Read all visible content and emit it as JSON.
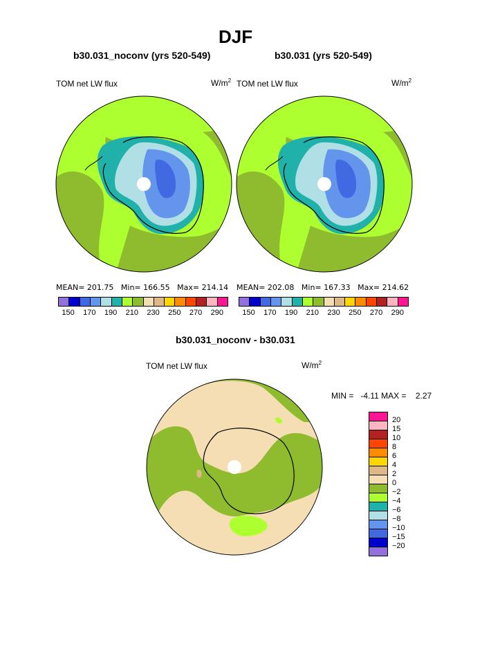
{
  "page": {
    "title": "DJF"
  },
  "panels": [
    {
      "case": "b30.031_noconv (yrs 520-549)",
      "variable": "TOM net LW flux",
      "units": "W/m",
      "units_sup": "2",
      "stats": {
        "mean": "MEAN= 201.75",
        "min": "Min= 166.55",
        "max": "Max= 214.14"
      }
    },
    {
      "case": "b30.031 (yrs 520-549)",
      "variable": "TOM net LW flux",
      "units": "W/m",
      "units_sup": "2",
      "stats": {
        "mean": "MEAN= 202.08",
        "min": "Min= 167.33",
        "max": "Max= 214.62"
      }
    }
  ],
  "diff": {
    "title": "b30.031_noconv - b30.031",
    "variable": "TOM net LW flux",
    "units": "W/m",
    "units_sup": "2",
    "minmax": "MIN =   -4.11 MAX =    2.27"
  },
  "colorbar_top": {
    "colors": [
      "#9370db",
      "#0000cd",
      "#4169e1",
      "#6495ed",
      "#b0e0e6",
      "#20b2aa",
      "#adff2f",
      "#8fbc2f",
      "#f5deb3",
      "#deb887",
      "#ffd700",
      "#ff8c00",
      "#ff4500",
      "#b22222",
      "#ffb6c1",
      "#ff1493"
    ],
    "tick_labels": [
      "150",
      "170",
      "190",
      "210",
      "230",
      "250",
      "270",
      "290"
    ]
  },
  "colorbar_diff": {
    "colors": [
      "#ff1493",
      "#ffb6c1",
      "#b22222",
      "#ff4500",
      "#ff8c00",
      "#ffd700",
      "#deb887",
      "#f5deb3",
      "#8fbc2f",
      "#adff2f",
      "#20b2aa",
      "#b0e0e6",
      "#6495ed",
      "#4169e1",
      "#0000cd",
      "#9370db"
    ],
    "labels": [
      "20",
      "15",
      "10",
      "8",
      "6",
      "4",
      "2",
      "0",
      "−2",
      "−4",
      "−6",
      "−8",
      "−10",
      "−15",
      "−20"
    ]
  },
  "chart_data": [
    {
      "type": "heatmap",
      "title": "b30.031_noconv (yrs 520-549)",
      "projection": "south polar stereographic",
      "variable": "TOM net LW flux",
      "units": "W/m2",
      "mean": 201.75,
      "min": 166.55,
      "max": 214.14,
      "levels": [
        150,
        160,
        170,
        180,
        190,
        200,
        210,
        220,
        230,
        240,
        250,
        260,
        270,
        280,
        290
      ]
    },
    {
      "type": "heatmap",
      "title": "b30.031 (yrs 520-549)",
      "projection": "south polar stereographic",
      "variable": "TOM net LW flux",
      "units": "W/m2",
      "mean": 202.08,
      "min": 167.33,
      "max": 214.62,
      "levels": [
        150,
        160,
        170,
        180,
        190,
        200,
        210,
        220,
        230,
        240,
        250,
        260,
        270,
        280,
        290
      ]
    },
    {
      "type": "heatmap",
      "title": "b30.031_noconv - b30.031",
      "projection": "south polar stereographic",
      "variable": "TOM net LW flux",
      "units": "W/m2",
      "min": -4.11,
      "max": 2.27,
      "levels": [
        -20,
        -15,
        -10,
        -8,
        -6,
        -4,
        -2,
        0,
        2,
        4,
        6,
        8,
        10,
        15,
        20
      ]
    }
  ]
}
